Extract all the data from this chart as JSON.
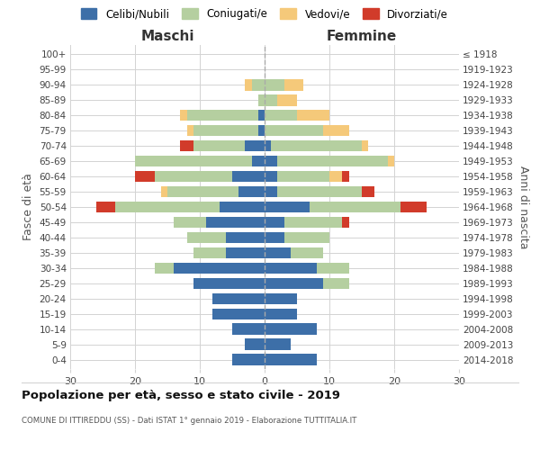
{
  "age_groups": [
    "0-4",
    "5-9",
    "10-14",
    "15-19",
    "20-24",
    "25-29",
    "30-34",
    "35-39",
    "40-44",
    "45-49",
    "50-54",
    "55-59",
    "60-64",
    "65-69",
    "70-74",
    "75-79",
    "80-84",
    "85-89",
    "90-94",
    "95-99",
    "100+"
  ],
  "birth_years": [
    "2014-2018",
    "2009-2013",
    "2004-2008",
    "1999-2003",
    "1994-1998",
    "1989-1993",
    "1984-1988",
    "1979-1983",
    "1974-1978",
    "1969-1973",
    "1964-1968",
    "1959-1963",
    "1954-1958",
    "1949-1953",
    "1944-1948",
    "1939-1943",
    "1934-1938",
    "1929-1933",
    "1924-1928",
    "1919-1923",
    "≤ 1918"
  ],
  "males": {
    "celibi": [
      5,
      3,
      5,
      8,
      8,
      11,
      14,
      6,
      6,
      9,
      7,
      4,
      5,
      2,
      3,
      1,
      1,
      0,
      0,
      0,
      0
    ],
    "coniugati": [
      0,
      0,
      0,
      0,
      0,
      0,
      3,
      5,
      6,
      5,
      16,
      11,
      12,
      18,
      8,
      10,
      11,
      1,
      2,
      0,
      0
    ],
    "vedovi": [
      0,
      0,
      0,
      0,
      0,
      0,
      0,
      0,
      0,
      0,
      0,
      1,
      0,
      0,
      0,
      1,
      1,
      0,
      1,
      0,
      0
    ],
    "divorziati": [
      0,
      0,
      0,
      0,
      0,
      0,
      0,
      0,
      0,
      0,
      3,
      0,
      3,
      0,
      2,
      0,
      0,
      0,
      0,
      0,
      0
    ]
  },
  "females": {
    "nubili": [
      8,
      4,
      8,
      5,
      5,
      9,
      8,
      4,
      3,
      3,
      7,
      2,
      2,
      2,
      1,
      0,
      0,
      0,
      0,
      0,
      0
    ],
    "coniugate": [
      0,
      0,
      0,
      0,
      0,
      4,
      5,
      5,
      7,
      9,
      14,
      13,
      8,
      17,
      14,
      9,
      5,
      2,
      3,
      0,
      0
    ],
    "vedove": [
      0,
      0,
      0,
      0,
      0,
      0,
      0,
      0,
      0,
      0,
      0,
      0,
      2,
      1,
      1,
      4,
      5,
      3,
      3,
      0,
      0
    ],
    "divorziate": [
      0,
      0,
      0,
      0,
      0,
      0,
      0,
      0,
      0,
      1,
      4,
      2,
      1,
      0,
      0,
      0,
      0,
      0,
      0,
      0,
      0
    ]
  },
  "colors": {
    "celibi": "#3d6fa8",
    "coniugati": "#b5cfa0",
    "vedovi": "#f5c97a",
    "divorziati": "#d13b2a"
  },
  "xlim": 30,
  "title": "Popolazione per età, sesso e stato civile - 2019",
  "subtitle": "COMUNE DI ITTIREDDU (SS) - Dati ISTAT 1° gennaio 2019 - Elaborazione TUTTITALIA.IT",
  "ylabel_left": "Fasce di età",
  "ylabel_right": "Anni di nascita",
  "xlabel_left": "Maschi",
  "xlabel_right": "Femmine",
  "legend_labels": [
    "Celibi/Nubili",
    "Coniugati/e",
    "Vedovi/e",
    "Divorziati/e"
  ],
  "bg_color": "#ffffff"
}
